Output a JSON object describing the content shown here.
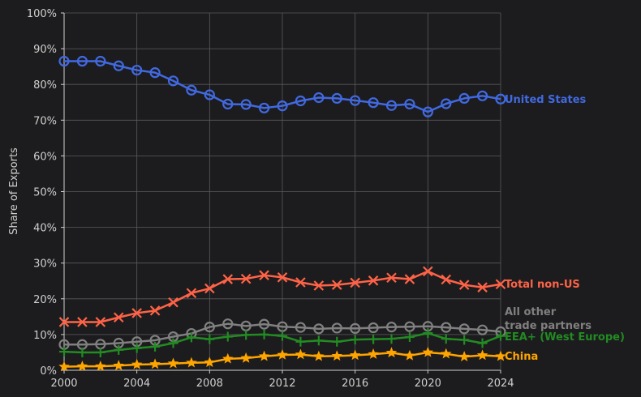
{
  "chart_data": {
    "type": "line",
    "title": "",
    "xlabel": "",
    "ylabel": "Share of Exports",
    "x": [
      2000,
      2001,
      2002,
      2003,
      2004,
      2005,
      2006,
      2007,
      2008,
      2009,
      2010,
      2011,
      2012,
      2013,
      2014,
      2015,
      2016,
      2017,
      2018,
      2019,
      2020,
      2021,
      2022,
      2023,
      2024
    ],
    "xlim": [
      2000,
      2024
    ],
    "ylim": [
      0,
      100
    ],
    "x_ticks": [
      "2000",
      "2004",
      "2008",
      "2012",
      "2016",
      "2020",
      "2024"
    ],
    "y_ticks": [
      "0%",
      "10%",
      "20%",
      "30%",
      "40%",
      "50%",
      "60%",
      "70%",
      "80%",
      "90%",
      "100%"
    ],
    "grid": true,
    "legend": "direct labels at right end",
    "series": [
      {
        "name": "United States",
        "color": "#4169e1",
        "marker": "circle",
        "values": [
          86.5,
          86.5,
          86.5,
          85.2,
          84.0,
          83.3,
          81.0,
          78.4,
          77.1,
          74.5,
          74.4,
          73.4,
          74.0,
          75.4,
          76.3,
          76.1,
          75.5,
          74.9,
          74.1,
          74.5,
          72.3,
          74.6,
          76.1,
          76.8,
          75.9
        ]
      },
      {
        "name": "Total non-US",
        "color": "#ff6347",
        "marker": "x",
        "values": [
          13.5,
          13.5,
          13.5,
          14.8,
          16.0,
          16.7,
          19.0,
          21.6,
          22.9,
          25.5,
          25.6,
          26.6,
          26.0,
          24.6,
          23.7,
          23.9,
          24.5,
          25.1,
          25.9,
          25.5,
          27.7,
          25.4,
          23.9,
          23.2,
          24.1
        ]
      },
      {
        "name": "All other trade partners",
        "label_lines": [
          "All other",
          "trade partners"
        ],
        "color": "#808080",
        "marker": "circle",
        "values": [
          7.2,
          7.2,
          7.3,
          7.6,
          8.0,
          8.4,
          9.4,
          10.3,
          12.1,
          13.0,
          12.4,
          12.9,
          12.2,
          12.0,
          11.6,
          11.8,
          11.7,
          11.9,
          12.1,
          12.2,
          12.3,
          12.0,
          11.6,
          11.3,
          10.8
        ]
      },
      {
        "name": "EEA+ (West Europe)",
        "color": "#228b22",
        "marker": "plus",
        "values": [
          5.2,
          5.0,
          5.0,
          5.7,
          6.2,
          6.6,
          7.6,
          9.2,
          8.7,
          9.4,
          9.9,
          10.0,
          9.6,
          8.0,
          8.3,
          8.0,
          8.6,
          8.7,
          8.8,
          9.3,
          10.4,
          8.8,
          8.5,
          7.6,
          9.6
        ]
      },
      {
        "name": "China",
        "color": "#ffa500",
        "marker": "star",
        "values": [
          1.0,
          1.1,
          1.1,
          1.3,
          1.6,
          1.7,
          1.9,
          2.1,
          2.2,
          3.2,
          3.4,
          3.9,
          4.3,
          4.4,
          3.9,
          4.0,
          4.2,
          4.5,
          4.9,
          4.1,
          5.0,
          4.6,
          3.8,
          4.2,
          3.9
        ]
      }
    ]
  }
}
